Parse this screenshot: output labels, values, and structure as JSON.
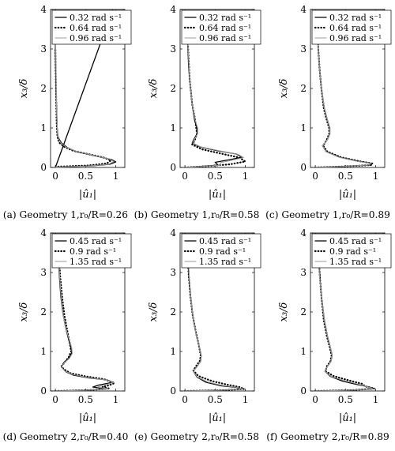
{
  "figure": {
    "captions": [
      "(a) Geometry 1,r₀/R=0.26",
      "(b) Geometry 1,r₀/R=0.58",
      "(c) Geometry 1,r₀/R=0.89",
      "(d) Geometry 2,r₀/R=0.40",
      "(e) Geometry 2,r₀/R=0.58",
      "(f) Geometry 2,r₀/R=0.89"
    ]
  },
  "chart_data": [
    {
      "type": "line",
      "caption": "(a) Geometry 1,r₀/R=0.26",
      "xlabel": "|û₁|",
      "ylabel": "x₃/δ",
      "xlim": [
        -0.08,
        1.15
      ],
      "ylim": [
        0,
        4
      ],
      "xticks": [
        0,
        0.5,
        1
      ],
      "xtick_labels": [
        "0",
        "0.5",
        "1"
      ],
      "yticks": [
        0,
        1,
        2,
        3,
        4
      ],
      "ytick_labels": [
        "0",
        "1",
        "2",
        "3",
        "4"
      ],
      "legend_position": "top",
      "series": [
        {
          "name": "0.32  rad s⁻¹",
          "style": "solid",
          "x": [
            0.95,
            0.0,
            0.02,
            0.6,
            0.9,
            1.0,
            0.93,
            0.7,
            0.35,
            0.2,
            0.1,
            0.06,
            0.04,
            0.03,
            0.01,
            0.0,
            0.0
          ],
          "y": [
            4.0,
            0.0,
            0.01,
            0.04,
            0.08,
            0.14,
            0.2,
            0.28,
            0.4,
            0.5,
            0.62,
            0.72,
            0.8,
            1.0,
            2.0,
            3.0,
            4.0
          ]
        },
        {
          "name": "0.64  rad s⁻¹",
          "style": "dotted",
          "x": [
            0.0,
            0.05,
            0.55,
            0.85,
            0.92,
            0.8,
            0.6,
            0.3,
            0.15,
            0.07,
            0.04,
            0.03,
            0.02,
            0.01,
            0.0
          ],
          "y": [
            0.0,
            0.02,
            0.05,
            0.1,
            0.18,
            0.25,
            0.32,
            0.42,
            0.52,
            0.62,
            0.72,
            0.85,
            1.2,
            2.0,
            3.0
          ]
        },
        {
          "name": "0.96  rad s⁻¹",
          "style": "gray",
          "x": [
            0.0,
            0.02,
            0.58,
            0.88,
            0.97,
            0.9,
            0.68,
            0.34,
            0.18,
            0.09,
            0.05,
            0.035,
            0.02,
            0.01,
            0.0
          ],
          "y": [
            0.0,
            0.01,
            0.04,
            0.08,
            0.15,
            0.21,
            0.29,
            0.41,
            0.51,
            0.62,
            0.72,
            0.85,
            1.5,
            2.5,
            3.5
          ]
        }
      ]
    },
    {
      "type": "line",
      "caption": "(b) Geometry 1,r₀/R=0.58",
      "xlabel": "|û₁|",
      "ylabel": "x₃/δ",
      "xlim": [
        -0.08,
        1.15
      ],
      "ylim": [
        0,
        4
      ],
      "xticks": [
        0,
        0.5,
        1
      ],
      "xtick_labels": [
        "0",
        "0.5",
        "1"
      ],
      "yticks": [
        0,
        1,
        2,
        3,
        4
      ],
      "ytick_labels": [
        "0",
        "1",
        "2",
        "3",
        "4"
      ],
      "legend_position": "top",
      "series": [
        {
          "name": "0.32  rad s⁻¹",
          "style": "solid",
          "x": [
            0.0,
            0.3,
            0.55,
            0.5,
            0.75,
            0.95,
            0.85,
            0.55,
            0.25,
            0.12,
            0.15,
            0.2,
            0.2,
            0.16,
            0.12,
            0.08,
            0.06,
            0.05,
            0.04,
            0.03
          ],
          "y": [
            0.0,
            0.03,
            0.06,
            0.13,
            0.2,
            0.26,
            0.34,
            0.42,
            0.52,
            0.62,
            0.72,
            0.85,
            1.0,
            1.2,
            1.6,
            2.2,
            2.6,
            3.0,
            3.5,
            3.95
          ]
        },
        {
          "name": "0.64  rad s⁻¹",
          "style": "dotted",
          "x": [
            0.0,
            0.35,
            0.75,
            1.0,
            0.9,
            0.6,
            0.28,
            0.12,
            0.16,
            0.2,
            0.17,
            0.12,
            0.08,
            0.06,
            0.04,
            0.03
          ],
          "y": [
            0.0,
            0.03,
            0.08,
            0.15,
            0.25,
            0.35,
            0.46,
            0.58,
            0.68,
            0.85,
            1.2,
            1.6,
            2.2,
            2.8,
            3.4,
            3.95
          ]
        },
        {
          "name": "0.96  rad s⁻¹",
          "style": "gray",
          "x": [
            0.0,
            0.32,
            0.6,
            0.58,
            0.8,
            0.97,
            0.88,
            0.58,
            0.26,
            0.13,
            0.16,
            0.21,
            0.21,
            0.17,
            0.12,
            0.08,
            0.06,
            0.04,
            0.03
          ],
          "y": [
            0.0,
            0.03,
            0.06,
            0.12,
            0.19,
            0.25,
            0.33,
            0.42,
            0.52,
            0.62,
            0.72,
            0.85,
            1.0,
            1.2,
            1.6,
            2.2,
            2.8,
            3.4,
            3.95
          ]
        }
      ]
    },
    {
      "type": "line",
      "caption": "(c) Geometry 1,r₀/R=0.89",
      "xlabel": "|û₁|",
      "ylabel": "x₃/δ",
      "xlim": [
        -0.08,
        1.15
      ],
      "ylim": [
        0,
        4
      ],
      "xticks": [
        0,
        0.5,
        1
      ],
      "xtick_labels": [
        "0",
        "0.5",
        "1"
      ],
      "yticks": [
        0,
        1,
        2,
        3,
        4
      ],
      "ytick_labels": [
        "0",
        "1",
        "2",
        "3",
        "4"
      ],
      "legend_position": "top",
      "series": [
        {
          "name": "0.32  rad s⁻¹",
          "style": "solid",
          "x": [
            0.0,
            0.5,
            0.9,
            0.95,
            0.7,
            0.4,
            0.18,
            0.12,
            0.2,
            0.24,
            0.24,
            0.2,
            0.15,
            0.1,
            0.07,
            0.05,
            0.04,
            0.03
          ],
          "y": [
            0.0,
            0.03,
            0.06,
            0.1,
            0.16,
            0.26,
            0.4,
            0.55,
            0.7,
            0.85,
            1.0,
            1.2,
            1.5,
            2.0,
            2.5,
            3.0,
            3.5,
            3.95
          ]
        },
        {
          "name": "0.64  rad s⁻¹",
          "style": "dotted",
          "x": [
            0.0,
            0.55,
            0.92,
            0.95,
            0.72,
            0.42,
            0.2,
            0.13,
            0.19,
            0.23,
            0.23,
            0.19,
            0.14,
            0.1,
            0.07,
            0.05,
            0.03
          ],
          "y": [
            0.0,
            0.03,
            0.06,
            0.1,
            0.16,
            0.26,
            0.4,
            0.55,
            0.7,
            0.85,
            1.0,
            1.2,
            1.5,
            2.0,
            2.5,
            3.0,
            3.95
          ]
        },
        {
          "name": "0.96  rad s⁻¹",
          "style": "gray",
          "x": [
            0.0,
            0.5,
            0.88,
            0.93,
            0.68,
            0.39,
            0.18,
            0.12,
            0.2,
            0.24,
            0.24,
            0.2,
            0.15,
            0.1,
            0.07,
            0.05,
            0.03
          ],
          "y": [
            0.0,
            0.03,
            0.06,
            0.1,
            0.16,
            0.26,
            0.4,
            0.55,
            0.7,
            0.85,
            1.0,
            1.2,
            1.5,
            2.0,
            2.5,
            3.0,
            3.95
          ]
        }
      ]
    },
    {
      "type": "line",
      "caption": "(d) Geometry 2,r₀/R=0.40",
      "xlabel": "|û₁|",
      "ylabel": "x₃/δ",
      "xlim": [
        -0.08,
        1.15
      ],
      "ylim": [
        0,
        4
      ],
      "xticks": [
        0,
        0.5,
        1
      ],
      "xtick_labels": [
        "0",
        "0.5",
        "1"
      ],
      "yticks": [
        0,
        1,
        2,
        3,
        4
      ],
      "ytick_labels": [
        "0",
        "1",
        "2",
        "3",
        "4"
      ],
      "legend_position": "top",
      "series": [
        {
          "name": "0.45  rad s⁻¹",
          "style": "solid",
          "x": [
            0.0,
            0.5,
            0.85,
            0.62,
            0.72,
            0.95,
            0.85,
            0.55,
            0.3,
            0.18,
            0.1,
            0.14,
            0.22,
            0.27,
            0.26,
            0.22,
            0.17,
            0.12,
            0.09,
            0.07,
            0.05,
            0.04
          ],
          "y": [
            0.0,
            0.02,
            0.05,
            0.1,
            0.15,
            0.22,
            0.28,
            0.33,
            0.4,
            0.48,
            0.6,
            0.72,
            0.82,
            0.95,
            1.1,
            1.3,
            1.6,
            2.0,
            2.4,
            2.8,
            3.3,
            3.9
          ]
        },
        {
          "name": "0.9  rad s⁻¹",
          "style": "dotted",
          "x": [
            0.0,
            0.55,
            0.9,
            0.78,
            0.9,
            0.98,
            0.8,
            0.5,
            0.25,
            0.14,
            0.1,
            0.15,
            0.22,
            0.26,
            0.24,
            0.2,
            0.15,
            0.11,
            0.08,
            0.06,
            0.04
          ],
          "y": [
            0.0,
            0.02,
            0.06,
            0.1,
            0.15,
            0.2,
            0.3,
            0.37,
            0.45,
            0.55,
            0.62,
            0.72,
            0.85,
            1.0,
            1.2,
            1.5,
            1.9,
            2.4,
            2.9,
            3.4,
            3.9
          ]
        },
        {
          "name": "1.35  rad s⁻¹",
          "style": "gray",
          "x": [
            0.0,
            0.52,
            0.88,
            0.7,
            0.8,
            0.96,
            0.84,
            0.53,
            0.28,
            0.16,
            0.1,
            0.15,
            0.23,
            0.28,
            0.27,
            0.23,
            0.17,
            0.12,
            0.09,
            0.06,
            0.04
          ],
          "y": [
            0.0,
            0.02,
            0.05,
            0.1,
            0.15,
            0.21,
            0.28,
            0.34,
            0.42,
            0.5,
            0.6,
            0.72,
            0.82,
            0.95,
            1.1,
            1.3,
            1.6,
            2.0,
            2.5,
            3.1,
            3.9
          ]
        }
      ]
    },
    {
      "type": "line",
      "caption": "(e) Geometry 2,r₀/R=0.58",
      "xlabel": "|û₁|",
      "ylabel": "x₃/δ",
      "xlim": [
        -0.08,
        1.15
      ],
      "ylim": [
        0,
        4
      ],
      "xticks": [
        0,
        0.5,
        1
      ],
      "xtick_labels": [
        "0",
        "0.5",
        "1"
      ],
      "yticks": [
        0,
        1,
        2,
        3,
        4
      ],
      "ytick_labels": [
        "0",
        "1",
        "2",
        "3",
        "4"
      ],
      "legend_position": "top",
      "series": [
        {
          "name": "0.45  rad s⁻¹",
          "style": "solid",
          "x": [
            0.0,
            0.6,
            0.95,
            0.85,
            0.6,
            0.35,
            0.2,
            0.14,
            0.2,
            0.26,
            0.27,
            0.24,
            0.19,
            0.14,
            0.1,
            0.07,
            0.05,
            0.04
          ],
          "y": [
            0.0,
            0.02,
            0.05,
            0.09,
            0.13,
            0.22,
            0.35,
            0.5,
            0.62,
            0.75,
            0.9,
            1.1,
            1.4,
            1.8,
            2.3,
            2.8,
            3.3,
            3.9
          ]
        },
        {
          "name": "0.9  rad s⁻¹",
          "style": "dotted",
          "x": [
            0.0,
            0.65,
            0.98,
            0.9,
            0.7,
            0.45,
            0.22,
            0.14,
            0.19,
            0.25,
            0.26,
            0.23,
            0.18,
            0.13,
            0.09,
            0.06,
            0.04
          ],
          "y": [
            0.0,
            0.02,
            0.05,
            0.1,
            0.16,
            0.25,
            0.38,
            0.52,
            0.64,
            0.77,
            0.92,
            1.15,
            1.5,
            1.9,
            2.4,
            3.0,
            3.9
          ]
        },
        {
          "name": "1.35  rad s⁻¹",
          "style": "gray",
          "x": [
            0.0,
            0.62,
            0.96,
            0.87,
            0.62,
            0.37,
            0.2,
            0.14,
            0.2,
            0.26,
            0.27,
            0.24,
            0.19,
            0.14,
            0.1,
            0.07,
            0.04
          ],
          "y": [
            0.0,
            0.02,
            0.05,
            0.09,
            0.14,
            0.23,
            0.36,
            0.5,
            0.62,
            0.75,
            0.9,
            1.1,
            1.4,
            1.8,
            2.3,
            2.9,
            3.9
          ]
        }
      ]
    },
    {
      "type": "line",
      "caption": "(f) Geometry 2,r₀/R=0.89",
      "xlabel": "|û₁|",
      "ylabel": "x₃/δ",
      "xlim": [
        -0.08,
        1.15
      ],
      "ylim": [
        0,
        4
      ],
      "xticks": [
        0,
        0.5,
        1
      ],
      "xtick_labels": [
        "0",
        "0.5",
        "1"
      ],
      "yticks": [
        0,
        1,
        2,
        3,
        4
      ],
      "ytick_labels": [
        "0",
        "1",
        "2",
        "3",
        "4"
      ],
      "legend_position": "top",
      "series": [
        {
          "name": "0.45  rad s⁻¹",
          "style": "solid",
          "x": [
            0.0,
            0.55,
            0.95,
            0.9,
            0.7,
            0.45,
            0.25,
            0.16,
            0.2,
            0.26,
            0.28,
            0.25,
            0.2,
            0.15,
            0.11,
            0.08,
            0.06,
            0.04
          ],
          "y": [
            0.0,
            0.02,
            0.05,
            0.1,
            0.16,
            0.25,
            0.37,
            0.5,
            0.62,
            0.75,
            0.9,
            1.1,
            1.4,
            1.8,
            2.3,
            2.8,
            3.3,
            3.9
          ]
        },
        {
          "name": "0.9  rad s⁻¹",
          "style": "dotted",
          "x": [
            0.0,
            0.6,
            0.98,
            0.82,
            0.78,
            0.55,
            0.3,
            0.17,
            0.19,
            0.25,
            0.27,
            0.24,
            0.19,
            0.14,
            0.1,
            0.07,
            0.04
          ],
          "y": [
            0.0,
            0.02,
            0.06,
            0.12,
            0.18,
            0.27,
            0.38,
            0.5,
            0.62,
            0.75,
            0.9,
            1.1,
            1.4,
            1.8,
            2.4,
            3.0,
            3.9
          ]
        },
        {
          "name": "1.35  rad s⁻¹",
          "style": "gray",
          "x": [
            0.0,
            0.57,
            0.96,
            0.88,
            0.72,
            0.48,
            0.26,
            0.16,
            0.2,
            0.26,
            0.28,
            0.25,
            0.2,
            0.15,
            0.11,
            0.07,
            0.04
          ],
          "y": [
            0.0,
            0.02,
            0.05,
            0.1,
            0.17,
            0.26,
            0.37,
            0.5,
            0.62,
            0.75,
            0.9,
            1.1,
            1.4,
            1.8,
            2.3,
            2.9,
            3.9
          ]
        }
      ]
    }
  ]
}
